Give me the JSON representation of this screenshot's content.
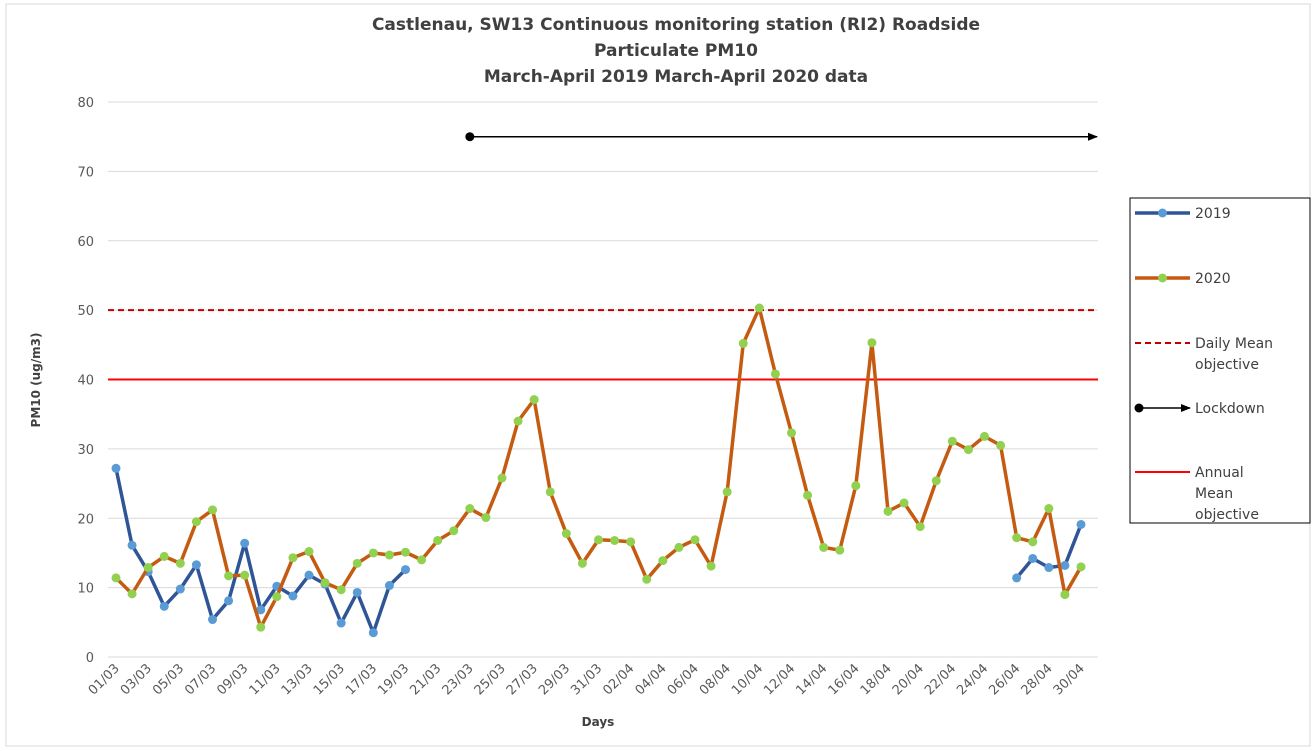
{
  "chart_data": {
    "type": "line",
    "title": [
      "Castlenau, SW13 Continuous monitoring station (RI2) Roadside",
      "Particulate PM10",
      "March-April 2019 March-April 2020 data"
    ],
    "x_label": "Days",
    "y_label": "PM10 (ug/m3)",
    "categories": [
      "01/03",
      null,
      "03/03",
      null,
      "05/03",
      null,
      "07/03",
      null,
      "09/03",
      null,
      "11/03",
      null,
      "13/03",
      null,
      "15/03",
      null,
      "17/03",
      null,
      "19/03",
      null,
      "21/03",
      null,
      "23/03",
      null,
      "25/03",
      null,
      "27/03",
      null,
      "29/03",
      null,
      "31/03",
      null,
      "02/04",
      null,
      "04/04",
      null,
      "06/04",
      null,
      "08/04",
      null,
      "10/04",
      null,
      "12/04",
      null,
      "14/04",
      null,
      "16/04",
      null,
      "18/04",
      null,
      "20/04",
      null,
      "22/04",
      null,
      "24/04",
      null,
      "26/04",
      null,
      "28/04",
      null,
      "30/04"
    ],
    "series": [
      {
        "name": "2019",
        "color": "#2f5597",
        "marker_color": "#5b9bd5",
        "values": [
          27.2,
          16.1,
          12.3,
          7.3,
          9.8,
          13.3,
          5.4,
          8.1,
          16.4,
          6.8,
          10.2,
          8.8,
          11.8,
          10.5,
          4.9,
          9.3,
          3.5,
          10.3,
          12.6,
          null,
          null,
          null,
          null,
          null,
          null,
          null,
          null,
          null,
          null,
          null,
          null,
          null,
          null,
          null,
          null,
          null,
          null,
          null,
          null,
          null,
          null,
          null,
          null,
          null,
          null,
          null,
          null,
          null,
          null,
          null,
          null,
          null,
          null,
          null,
          null,
          null,
          11.4,
          14.2,
          12.9,
          13.2,
          19.1
        ]
      },
      {
        "name": "2020",
        "color": "#c55a11",
        "marker_color": "#92d050",
        "values": [
          11.4,
          9.1,
          12.9,
          14.5,
          13.5,
          19.5,
          21.2,
          11.7,
          11.8,
          4.3,
          8.7,
          14.3,
          15.2,
          10.7,
          9.7,
          13.5,
          15.0,
          14.7,
          15.1,
          14.0,
          16.8,
          18.2,
          21.4,
          20.1,
          25.8,
          34.0,
          37.1,
          23.8,
          17.8,
          13.5,
          16.9,
          16.8,
          16.6,
          11.2,
          13.9,
          15.8,
          16.9,
          13.1,
          23.8,
          45.2,
          50.3,
          40.8,
          32.3,
          23.3,
          15.8,
          15.4,
          24.7,
          45.3,
          21.0,
          22.2,
          18.8,
          25.4,
          31.1,
          29.9,
          31.8,
          30.5,
          17.2,
          16.6,
          21.4,
          9.0,
          13.0
        ]
      }
    ],
    "reference_lines": [
      {
        "name": "Daily Mean objective",
        "value": 50,
        "color": "#c00000",
        "dashed": true
      },
      {
        "name": "Annual Mean objective",
        "value": 40,
        "color": "#ff0000",
        "dashed": false
      }
    ],
    "arrow": {
      "name": "Lockdown",
      "value": 75,
      "start": "23/03",
      "end": "30/04",
      "color": "#000000"
    },
    "legend_order": [
      "series.0",
      "series.1",
      "reference_lines.0",
      "arrow",
      "reference_lines.1"
    ],
    "ylim": [
      0,
      80
    ],
    "yticks": [
      0,
      10,
      20,
      30,
      40,
      50,
      60,
      70,
      80
    ],
    "grid": true
  }
}
